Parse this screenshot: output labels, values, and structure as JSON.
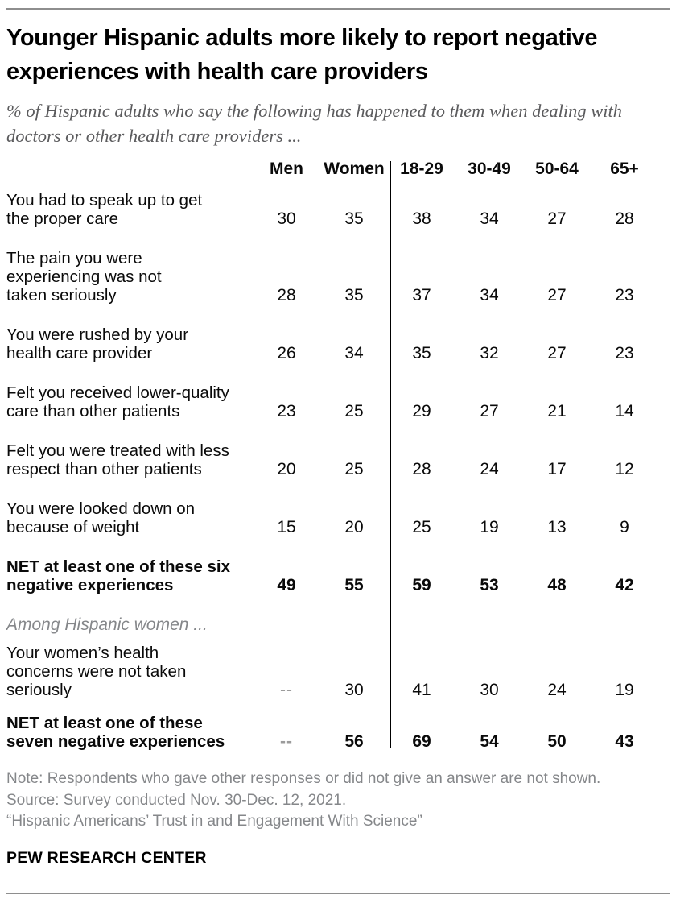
{
  "header": {
    "title": "Younger Hispanic adults more likely to report negative experiences with health care providers",
    "subtitle": "% of Hispanic adults who say the following has happened to them when dealing with doctors or other health care providers ..."
  },
  "table": {
    "columns": [
      "Men",
      "Women",
      "18-29",
      "30-49",
      "50-64",
      "65+"
    ],
    "rows": [
      {
        "label": "You had to speak up to get\nthe proper care",
        "bold": false,
        "values": [
          "30",
          "35",
          "38",
          "34",
          "27",
          "28"
        ]
      },
      {
        "label": "The pain you were\nexperiencing was not\ntaken seriously",
        "bold": false,
        "values": [
          "28",
          "35",
          "37",
          "34",
          "27",
          "23"
        ]
      },
      {
        "label": "You were rushed by your\nhealth care provider",
        "bold": false,
        "values": [
          "26",
          "34",
          "35",
          "32",
          "27",
          "23"
        ]
      },
      {
        "label": "Felt you received lower-quality\ncare than other patients",
        "bold": false,
        "values": [
          "23",
          "25",
          "29",
          "27",
          "21",
          "14"
        ]
      },
      {
        "label": "Felt you were treated with less\nrespect than other patients",
        "bold": false,
        "values": [
          "20",
          "25",
          "28",
          "24",
          "17",
          "12"
        ]
      },
      {
        "label": "You were looked down on\nbecause of weight",
        "bold": false,
        "values": [
          "15",
          "20",
          "25",
          "19",
          "13",
          "9"
        ]
      },
      {
        "label": "NET at least one of these six\nnegative experiences",
        "bold": true,
        "values": [
          "49",
          "55",
          "59",
          "53",
          "48",
          "42"
        ]
      },
      {
        "label": "Your women’s health\nconcerns were not taken\nseriously",
        "bold": false,
        "values": [
          "--",
          "30",
          "41",
          "30",
          "24",
          "19"
        ]
      },
      {
        "label": "NET at least one of these\nseven negative experiences",
        "bold": true,
        "values": [
          "--",
          "56",
          "69",
          "54",
          "50",
          "43"
        ]
      }
    ],
    "section_label": "Among Hispanic women ..."
  },
  "footer": {
    "note": "Note: Respondents who gave other responses or did not give an answer are not shown.",
    "source": "Source: Survey conducted Nov. 30-Dec. 12, 2021.",
    "report": "“Hispanic Americans’ Trust in and Engagement With Science”",
    "brand": "PEW RESEARCH CENTER"
  },
  "colors": {
    "rule_gray": "#8e8e8e",
    "subtitle_gray": "#5b5b5d",
    "note_gray": "#85878a",
    "dash_gray": "#9b9b9b",
    "divider_black": "#000000"
  },
  "chart_data": {
    "type": "table",
    "title": "Younger Hispanic adults more likely to report negative experiences with health care providers",
    "subtitle": "% of Hispanic adults who say the following has happened to them when dealing with doctors or other health care providers ...",
    "columns": [
      "Men",
      "Women",
      "18-29",
      "30-49",
      "50-64",
      "65+"
    ],
    "rows": [
      {
        "label": "You had to speak up to get the proper care",
        "values": [
          30,
          35,
          38,
          34,
          27,
          28
        ]
      },
      {
        "label": "The pain you were experiencing was not taken seriously",
        "values": [
          28,
          35,
          37,
          34,
          27,
          23
        ]
      },
      {
        "label": "You were rushed by your health care provider",
        "values": [
          26,
          34,
          35,
          32,
          27,
          23
        ]
      },
      {
        "label": "Felt you received lower-quality care than other patients",
        "values": [
          23,
          25,
          29,
          27,
          21,
          14
        ]
      },
      {
        "label": "Felt you were treated with less respect than other patients",
        "values": [
          20,
          25,
          28,
          24,
          17,
          12
        ]
      },
      {
        "label": "You were looked down on because of weight",
        "values": [
          15,
          20,
          25,
          19,
          13,
          9
        ]
      },
      {
        "label": "NET at least one of these six negative experiences",
        "values": [
          49,
          55,
          59,
          53,
          48,
          42
        ],
        "emphasis": "bold"
      },
      {
        "label": "Your women’s health concerns were not taken seriously",
        "section": "Among Hispanic women ...",
        "values": [
          null,
          30,
          41,
          30,
          24,
          19
        ]
      },
      {
        "label": "NET at least one of these seven negative experiences",
        "values": [
          null,
          56,
          69,
          54,
          50,
          43
        ],
        "emphasis": "bold"
      }
    ],
    "group_divider_after_column": "Women",
    "notes": [
      "Note: Respondents who gave other responses or did not give an answer are not shown.",
      "Source: Survey conducted Nov. 30-Dec. 12, 2021.",
      "“Hispanic Americans’ Trust in and Engagement With Science”"
    ],
    "brand": "PEW RESEARCH CENTER"
  }
}
